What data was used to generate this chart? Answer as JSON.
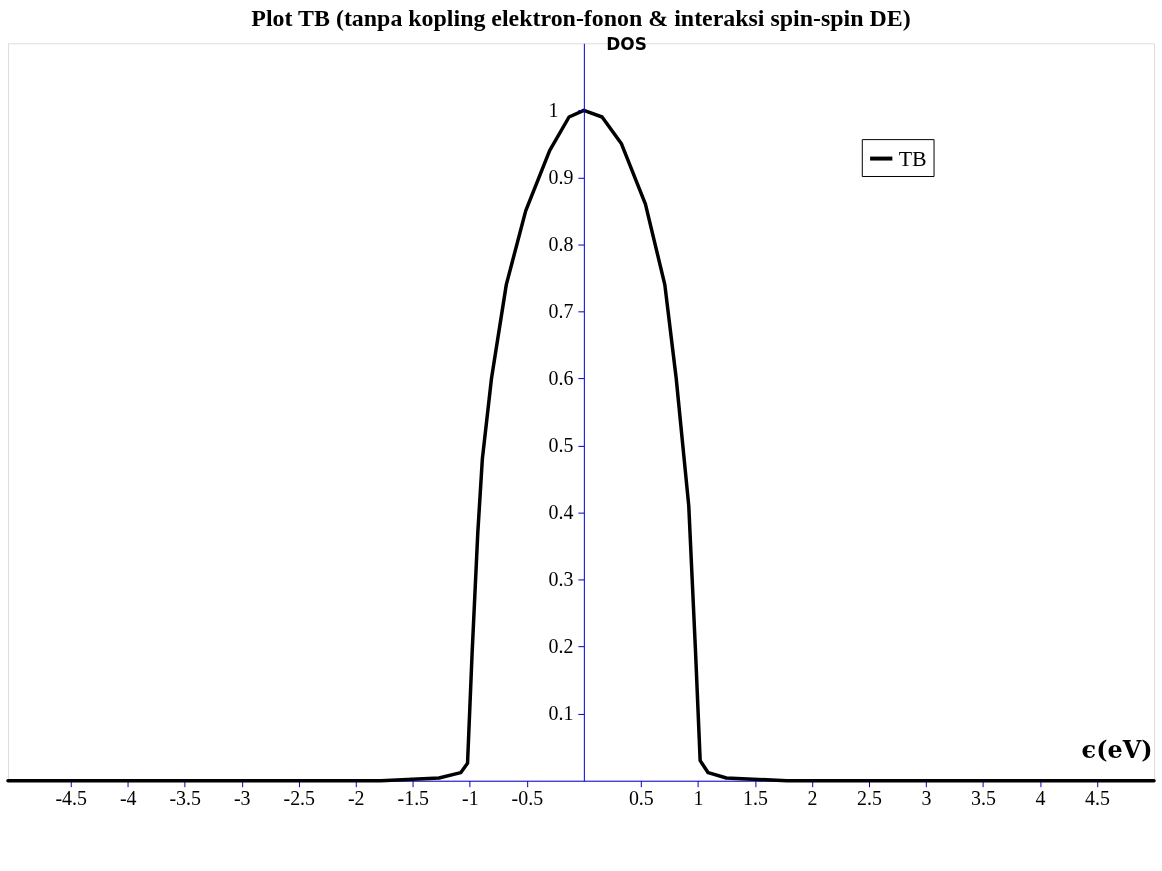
{
  "chart_data": {
    "type": "line",
    "title": "Plot TB (tanpa kopling elektron-fonon & interaksi spin-spin DE)",
    "xlabel": "ϵ(eV)",
    "ylabel": "DOS",
    "x": [
      -5.05,
      -2.5,
      -1.78,
      -1.27,
      -1.08,
      -1.02,
      -0.98,
      -0.93,
      -0.89,
      -0.81,
      -0.68,
      -0.51,
      -0.3,
      -0.13,
      0,
      0.16,
      0.33,
      0.54,
      0.71,
      0.81,
      0.92,
      0.98,
      1.02,
      1.09,
      1.25,
      1.78,
      2.5,
      5.0
    ],
    "series": [
      {
        "name": "TB",
        "color": "#000000",
        "values": [
          0,
          0,
          0,
          0.004,
          0.012,
          0.026,
          0.19,
          0.37,
          0.48,
          0.6,
          0.74,
          0.85,
          0.94,
          0.99,
          1.0,
          0.99,
          0.95,
          0.86,
          0.74,
          0.6,
          0.41,
          0.19,
          0.03,
          0.012,
          0.004,
          0,
          0,
          0
        ]
      }
    ],
    "xlim": [
      -5.05,
      5.0
    ],
    "ylim": [
      0,
      1.1
    ],
    "xticks": [
      -4.5,
      -4,
      -3.5,
      -3,
      -2.5,
      -2,
      -1.5,
      -1,
      -0.5,
      0.5,
      1,
      1.5,
      2,
      2.5,
      3,
      3.5,
      4,
      4.5
    ],
    "yticks": [
      0.1,
      0.2,
      0.3,
      0.4,
      0.5,
      0.6,
      0.7,
      0.8,
      0.9,
      1
    ],
    "legend": "top right",
    "marker": "none",
    "line_style": "solid",
    "grid": false
  }
}
